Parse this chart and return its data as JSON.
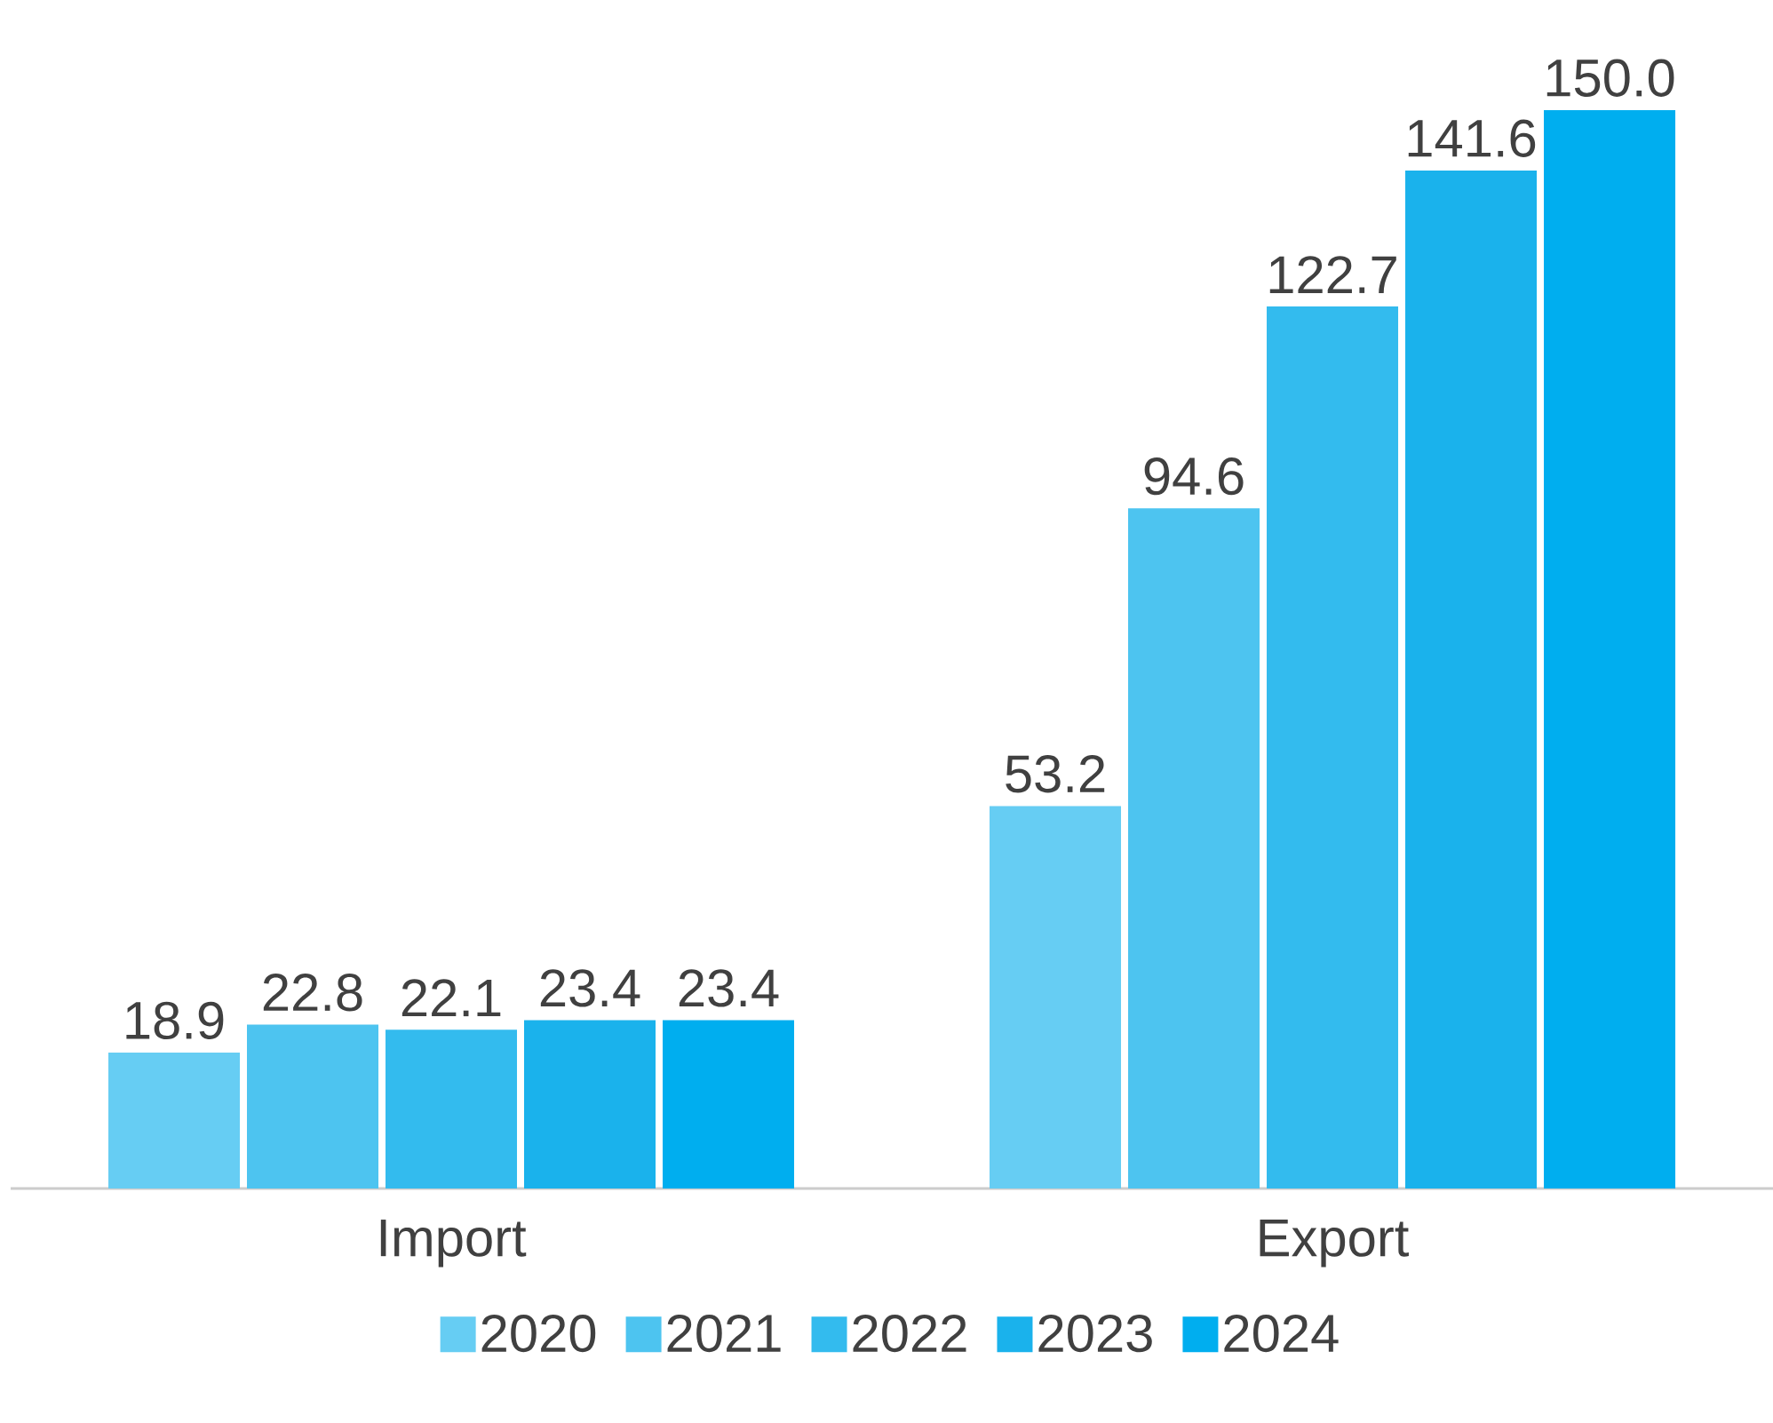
{
  "chart_data": {
    "type": "bar",
    "categories": [
      "Import",
      "Export"
    ],
    "series": [
      {
        "name": "2020",
        "color": "#66cdf3",
        "values": [
          18.9,
          53.2
        ],
        "value_labels": [
          "18.9",
          "53.2"
        ]
      },
      {
        "name": "2021",
        "color": "#4dc4f0",
        "values": [
          22.8,
          94.6
        ],
        "value_labels": [
          "22.8",
          "94.6"
        ]
      },
      {
        "name": "2022",
        "color": "#33bbee",
        "values": [
          22.1,
          122.7
        ],
        "value_labels": [
          "22.1",
          "122.7"
        ]
      },
      {
        "name": "2023",
        "color": "#1ab2ec",
        "values": [
          23.4,
          141.6
        ],
        "value_labels": [
          "23.4",
          "141.6"
        ]
      },
      {
        "name": "2024",
        "color": "#00aeef",
        "values": [
          23.4,
          150.0
        ],
        "value_labels": [
          "23.4",
          "150.0"
        ]
      }
    ],
    "ylim": [
      0,
      150
    ],
    "legend": "bottom",
    "grid": false
  }
}
